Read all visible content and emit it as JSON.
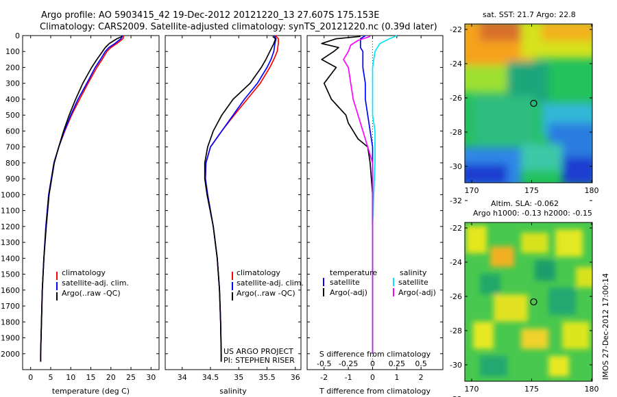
{
  "header": {
    "title_line1": "Argo profile: AO 5903415_42 19-Dec-2012 20121220_13 27.607S 175.153E",
    "title_line2": "Climatology: CARS2009. Satellite-adjusted climatology: synTS_20121220.nc (0.39d later)"
  },
  "colors": {
    "climatology": "#ff0000",
    "satellite": "#0000ff",
    "argo": "#000000",
    "salinity_satellite": "#00e5ff",
    "salinity_argo": "#ff00ff"
  },
  "legend": {
    "climatology": "climatology",
    "satellite_adj": "satellite-adj. clim.",
    "argo_raw": "Argo(..raw -QC)",
    "temperature_head": "temperature",
    "salinity_head": "salinity",
    "satellite": "satellite",
    "argo_adj": "Argo(-adj)"
  },
  "credits": {
    "line1": "US ARGO PROJECT",
    "line2": "PI: STEPHEN RISER"
  },
  "side_label": "IMOS 27-Dec-2012 17:00:14",
  "maps": {
    "sst_title": "sat. SST: 21.7  Argo: 22.8",
    "sla_title1": "Altim. SLA: -0.062",
    "sla_title2": "Argo h1000: -0.13  h2000: -0.15",
    "lat_ticks": [
      "-22",
      "-24",
      "-26",
      "-28",
      "-30",
      "-32"
    ],
    "lon_ticks": [
      "170",
      "175",
      "180"
    ],
    "argo_position": {
      "lon": 175.153,
      "lat": -27.607
    }
  },
  "chart_data": [
    {
      "type": "line",
      "title": "",
      "xlabel": "temperature (deg C)",
      "ylabel": "",
      "xlim": [
        -2,
        32
      ],
      "ylim": [
        2100,
        0
      ],
      "xticks": [
        "0",
        "5",
        "10",
        "15",
        "20",
        "25",
        "30"
      ],
      "yticks": [
        "0",
        "100",
        "200",
        "300",
        "400",
        "500",
        "600",
        "700",
        "800",
        "900",
        "1000",
        "1100",
        "1200",
        "1300",
        "1400",
        "1500",
        "1600",
        "1700",
        "1800",
        "1900",
        "2000"
      ],
      "series": [
        {
          "name": "climatology",
          "color": "#ff0000",
          "depth": [
            0,
            20,
            50,
            75,
            100,
            150,
            200,
            300,
            400,
            500,
            600,
            700,
            800,
            1000,
            1200,
            1400,
            1600,
            1800,
            2000,
            2050
          ],
          "values": [
            23.2,
            23,
            21.5,
            20,
            19,
            17.8,
            16.5,
            14.3,
            12.2,
            10.2,
            8.5,
            7,
            5.8,
            4.5,
            3.8,
            3.3,
            2.9,
            2.7,
            2.5,
            2.5
          ]
        },
        {
          "name": "satellite-adj. clim.",
          "color": "#0000ff",
          "depth": [
            0,
            20,
            50,
            75,
            100,
            150,
            200,
            300,
            400,
            500,
            600,
            700,
            800,
            1000,
            1200,
            1400,
            1600,
            1800,
            2000,
            2050
          ],
          "values": [
            22.9,
            22.5,
            21,
            19.5,
            18.6,
            17.4,
            16.1,
            14,
            11.8,
            10,
            8.4,
            7,
            5.8,
            4.5,
            3.8,
            3.3,
            2.9,
            2.7,
            2.5,
            2.5
          ]
        },
        {
          "name": "Argo(..raw -QC)",
          "color": "#000000",
          "depth": [
            5,
            20,
            50,
            75,
            100,
            150,
            200,
            300,
            400,
            500,
            600,
            700,
            800,
            1000,
            1200,
            1400,
            1600,
            1800,
            2000,
            2050
          ],
          "values": [
            22.8,
            21.5,
            19.6,
            18.6,
            17.9,
            16.5,
            15.2,
            13,
            11.2,
            9.6,
            8.2,
            7,
            5.9,
            4.6,
            3.9,
            3.3,
            2.9,
            2.7,
            2.5,
            2.5
          ]
        }
      ]
    },
    {
      "type": "line",
      "title": "",
      "xlabel": "salinity",
      "ylabel": "",
      "xlim": [
        33.7,
        36.1
      ],
      "ylim": [
        2100,
        0
      ],
      "xticks": [
        "34",
        "34.5",
        "35",
        "35.5",
        "36"
      ],
      "series": [
        {
          "name": "climatology",
          "color": "#ff0000",
          "depth": [
            0,
            20,
            50,
            100,
            150,
            200,
            300,
            400,
            500,
            600,
            700,
            800,
            900,
            1000,
            1200,
            1400,
            1600,
            1800,
            2000,
            2050
          ],
          "values": [
            35.65,
            35.7,
            35.7,
            35.68,
            35.62,
            35.55,
            35.38,
            35.15,
            34.92,
            34.7,
            34.5,
            34.42,
            34.41,
            34.45,
            34.55,
            34.62,
            34.66,
            34.68,
            34.69,
            34.69
          ]
        },
        {
          "name": "satellite-adj. clim.",
          "color": "#0000ff",
          "depth": [
            0,
            20,
            50,
            100,
            150,
            200,
            300,
            400,
            500,
            600,
            700,
            800,
            900,
            1000,
            1200,
            1400,
            1600,
            1800,
            2000,
            2050
          ],
          "values": [
            35.63,
            35.66,
            35.64,
            35.62,
            35.57,
            35.5,
            35.33,
            35.1,
            34.9,
            34.7,
            34.5,
            34.42,
            34.41,
            34.45,
            34.55,
            34.62,
            34.66,
            34.68,
            34.69,
            34.69
          ]
        },
        {
          "name": "Argo(..raw -QC)",
          "color": "#000000",
          "depth": [
            5,
            20,
            50,
            100,
            150,
            200,
            300,
            400,
            500,
            600,
            700,
            800,
            900,
            1000,
            1200,
            1400,
            1600,
            1800,
            2000,
            2050
          ],
          "values": [
            35.6,
            35.65,
            35.62,
            35.55,
            35.48,
            35.4,
            35.2,
            34.9,
            34.7,
            34.55,
            34.45,
            34.4,
            34.4,
            34.44,
            34.55,
            34.62,
            34.66,
            34.68,
            34.69,
            34.69
          ]
        }
      ]
    },
    {
      "type": "line",
      "title": "",
      "xlabel": "T difference from climatology",
      "xlabel_top": "S difference from climatology",
      "xlim": [
        -2.7,
        2.9
      ],
      "ylim": [
        2100,
        0
      ],
      "xticks": [
        "-2",
        "-1",
        "0",
        "1",
        "2"
      ],
      "xticks_top": [
        "-0.5",
        "-0.25",
        "0",
        "0.25",
        "0.5"
      ],
      "series": [
        {
          "name": "temperature satellite",
          "color": "#0000ff",
          "depth": [
            0,
            20,
            50,
            75,
            100,
            150,
            200,
            300,
            400,
            500,
            600,
            700,
            800,
            1000,
            1200,
            1500,
            2000
          ],
          "values": [
            -0.3,
            -0.5,
            -0.5,
            -0.5,
            -0.4,
            -0.4,
            -0.4,
            -0.3,
            -0.3,
            -0.2,
            -0.1,
            0,
            0,
            0,
            0,
            0,
            0
          ]
        },
        {
          "name": "temperature Argo(-adj)",
          "color": "#000000",
          "depth": [
            5,
            20,
            50,
            75,
            100,
            150,
            200,
            300,
            400,
            500,
            550,
            600,
            650,
            700,
            800,
            1000,
            1200,
            1500,
            2000
          ],
          "values": [
            -0.5,
            -1.5,
            -2.1,
            -1.4,
            -1.6,
            -2.1,
            -1.5,
            -2.0,
            -1.7,
            -1.1,
            -1.0,
            -0.8,
            -0.6,
            -0.2,
            -0.1,
            0,
            0,
            0,
            0
          ]
        },
        {
          "name": "salinity satellite",
          "color": "#00e5ff",
          "depth": [
            0,
            20,
            50,
            100,
            200,
            300,
            400,
            500,
            600,
            800,
            1000,
            1200,
            1500,
            2000
          ],
          "values": [
            1.0,
            0.7,
            0.3,
            0.1,
            0.0,
            0.0,
            0.0,
            0.0,
            0.1,
            0.1,
            0.05,
            0.0,
            0.0,
            0.0
          ]
        },
        {
          "name": "salinity Argo(-adj)",
          "color": "#ff00ff",
          "depth": [
            5,
            30,
            60,
            100,
            150,
            200,
            300,
            400,
            500,
            600,
            700,
            800,
            1000,
            1200,
            1500,
            2000
          ],
          "values": [
            -0.1,
            -0.6,
            -0.9,
            -1.0,
            -1.2,
            -1.0,
            -0.9,
            -0.8,
            -0.6,
            -0.4,
            -0.2,
            0,
            0,
            0,
            0,
            0
          ]
        }
      ]
    }
  ]
}
